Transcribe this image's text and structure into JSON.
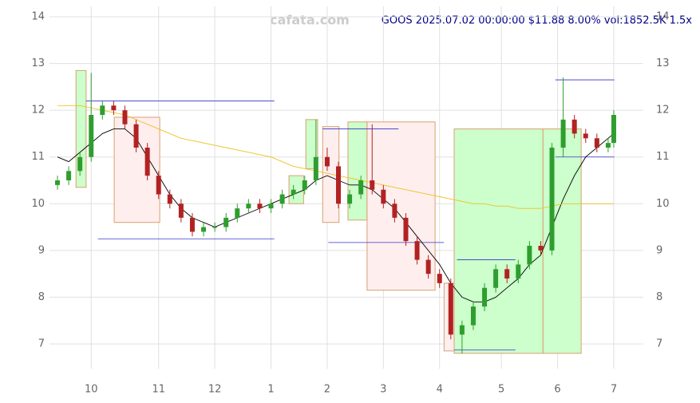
{
  "chart_data": {
    "type": "candlestick",
    "title": "GOOS 2025.07.02 00:00:00 $11.88 8.00% vol:1852.5K 1.5x",
    "watermark": "cafata.com",
    "xlim": [
      0,
      100
    ],
    "xticks": [
      {
        "value": 6,
        "label": "10"
      },
      {
        "value": 18,
        "label": "11"
      },
      {
        "value": 28,
        "label": "12"
      },
      {
        "value": 38,
        "label": "1"
      },
      {
        "value": 48,
        "label": "2"
      },
      {
        "value": 58,
        "label": "3"
      },
      {
        "value": 68,
        "label": "4"
      },
      {
        "value": 79,
        "label": "5"
      },
      {
        "value": 89,
        "label": "6"
      },
      {
        "value": 99,
        "label": "7"
      }
    ],
    "ylim": [
      6.6,
      14.1
    ],
    "yticks": [
      7,
      8,
      9,
      10,
      11,
      12,
      13,
      14
    ],
    "grid": true,
    "up_color": "#2e9e2e",
    "down_color": "#b22222",
    "x": [
      0,
      2,
      4,
      6,
      8,
      10,
      12,
      14,
      16,
      18,
      20,
      22,
      24,
      26,
      28,
      30,
      32,
      34,
      36,
      38,
      40,
      42,
      44,
      46,
      48,
      50,
      52,
      54,
      56,
      58,
      60,
      62,
      64,
      66,
      68,
      70,
      72,
      74,
      76,
      78,
      80,
      82,
      84,
      86,
      88,
      90,
      92,
      94,
      96,
      98,
      99
    ],
    "open": [
      10.4,
      10.5,
      10.7,
      11.0,
      11.9,
      12.1,
      12.0,
      11.7,
      11.2,
      10.6,
      10.2,
      10.0,
      9.7,
      9.4,
      9.5,
      9.5,
      9.7,
      9.9,
      10.0,
      9.9,
      10.0,
      10.2,
      10.3,
      10.5,
      11.0,
      10.8,
      10.0,
      10.2,
      10.5,
      10.3,
      10.0,
      9.7,
      9.2,
      8.8,
      8.5,
      8.3,
      7.2,
      7.4,
      7.8,
      8.2,
      8.6,
      8.4,
      8.7,
      9.1,
      9.0,
      11.2,
      11.8,
      11.5,
      11.4,
      11.2,
      11.3
    ],
    "high": [
      10.6,
      10.8,
      11.1,
      12.8,
      12.2,
      12.2,
      12.1,
      11.8,
      11.3,
      10.7,
      10.3,
      10.1,
      9.8,
      9.6,
      9.6,
      9.8,
      10.0,
      10.1,
      10.1,
      10.1,
      10.3,
      10.4,
      10.6,
      11.8,
      11.2,
      10.9,
      10.3,
      10.6,
      11.7,
      10.4,
      10.1,
      9.8,
      9.3,
      8.9,
      8.6,
      8.4,
      7.5,
      7.9,
      8.3,
      8.7,
      8.7,
      8.8,
      9.2,
      9.2,
      11.3,
      12.7,
      11.9,
      11.6,
      11.5,
      11.4,
      12.0
    ],
    "low": [
      10.3,
      10.4,
      10.6,
      10.9,
      11.8,
      11.9,
      11.6,
      11.1,
      10.5,
      10.1,
      9.9,
      9.6,
      9.3,
      9.3,
      9.4,
      9.4,
      9.6,
      9.8,
      9.8,
      9.8,
      9.9,
      10.1,
      10.2,
      10.4,
      10.7,
      9.9,
      9.9,
      10.1,
      10.2,
      9.9,
      9.6,
      9.1,
      8.7,
      8.4,
      8.2,
      7.1,
      6.8,
      7.3,
      7.7,
      8.1,
      8.3,
      8.3,
      8.6,
      8.9,
      8.9,
      11.0,
      11.4,
      11.3,
      11.1,
      11.1,
      11.2
    ],
    "close": [
      10.5,
      10.7,
      11.0,
      11.9,
      12.1,
      12.0,
      11.7,
      11.2,
      10.6,
      10.2,
      10.0,
      9.7,
      9.4,
      9.5,
      9.5,
      9.7,
      9.9,
      10.0,
      9.9,
      10.0,
      10.2,
      10.3,
      10.5,
      11.0,
      10.8,
      10.0,
      10.2,
      10.5,
      10.3,
      10.0,
      9.7,
      9.2,
      8.8,
      8.5,
      8.3,
      7.2,
      7.4,
      7.8,
      8.2,
      8.6,
      8.4,
      8.7,
      9.1,
      9.0,
      11.2,
      11.8,
      11.5,
      11.4,
      11.2,
      11.3,
      11.9
    ],
    "lines": [
      {
        "color": "#000000",
        "values": [
          11.0,
          10.9,
          11.1,
          11.3,
          11.5,
          11.6,
          11.6,
          11.4,
          11.0,
          10.6,
          10.2,
          9.9,
          9.7,
          9.6,
          9.5,
          9.6,
          9.7,
          9.8,
          9.9,
          10.0,
          10.1,
          10.2,
          10.3,
          10.5,
          10.6,
          10.5,
          10.4,
          10.4,
          10.3,
          10.1,
          9.9,
          9.6,
          9.3,
          9.0,
          8.7,
          8.3,
          8.0,
          7.9,
          7.9,
          8.0,
          8.2,
          8.4,
          8.7,
          8.9,
          9.5,
          10.1,
          10.6,
          11.0,
          11.2,
          11.4,
          11.5
        ]
      },
      {
        "color": "#f0c020",
        "values": [
          12.1,
          12.1,
          12.1,
          12.05,
          12.0,
          11.95,
          11.9,
          11.8,
          11.7,
          11.6,
          11.5,
          11.4,
          11.35,
          11.3,
          11.25,
          11.2,
          11.15,
          11.1,
          11.05,
          11.0,
          10.9,
          10.8,
          10.75,
          10.7,
          10.65,
          10.6,
          10.55,
          10.5,
          10.45,
          10.4,
          10.35,
          10.3,
          10.25,
          10.2,
          10.15,
          10.1,
          10.05,
          10.0,
          10.0,
          9.95,
          9.95,
          9.9,
          9.9,
          9.9,
          9.95,
          10.0,
          10.0,
          10.0,
          10.0,
          10.0,
          10.0
        ]
      }
    ],
    "boxes": [
      {
        "x": [
          3.3,
          5.1
        ],
        "y": [
          10.35,
          12.85
        ],
        "color": "#ccffcc"
      },
      {
        "x": [
          10.1,
          18.2
        ],
        "y": [
          9.6,
          11.85
        ],
        "color": "#ffeeee"
      },
      {
        "x": [
          41.2,
          43.8
        ],
        "y": [
          10.0,
          10.6
        ],
        "color": "#ccffcc"
      },
      {
        "x": [
          44.2,
          46.3
        ],
        "y": [
          10.75,
          11.8
        ],
        "color": "#ccffcc"
      },
      {
        "x": [
          47.2,
          50.1
        ],
        "y": [
          9.6,
          11.65
        ],
        "color": "#ffeeee"
      },
      {
        "x": [
          51.7,
          55.1
        ],
        "y": [
          9.65,
          11.75
        ],
        "color": "#ccffcc"
      },
      {
        "x": [
          55.1,
          67.2
        ],
        "y": [
          8.15,
          11.75
        ],
        "color": "#ffeeee"
      },
      {
        "x": [
          68.8,
          70.6
        ],
        "y": [
          6.85,
          8.3
        ],
        "color": "#ffeeee"
      },
      {
        "x": [
          70.6,
          86.4
        ],
        "y": [
          6.8,
          11.6
        ],
        "color": "#ccffcc"
      },
      {
        "x": [
          86.4,
          93.2
        ],
        "y": [
          6.8,
          11.6
        ],
        "color": "#ccffcc"
      }
    ],
    "levels": [
      {
        "x": [
          5.1,
          38.6
        ],
        "y": 12.2
      },
      {
        "x": [
          7.2,
          38.6
        ],
        "y": 9.25
      },
      {
        "x": [
          47.2,
          60.7
        ],
        "y": 11.6
      },
      {
        "x": [
          48.2,
          68.8
        ],
        "y": 9.17
      },
      {
        "x": [
          71.1,
          81.5
        ],
        "y": 8.8
      },
      {
        "x": [
          70.6,
          81.5
        ],
        "y": 6.87
      },
      {
        "x": [
          88.6,
          99.1
        ],
        "y": 12.65
      },
      {
        "x": [
          88.6,
          99.1
        ],
        "y": 11.0
      }
    ]
  }
}
